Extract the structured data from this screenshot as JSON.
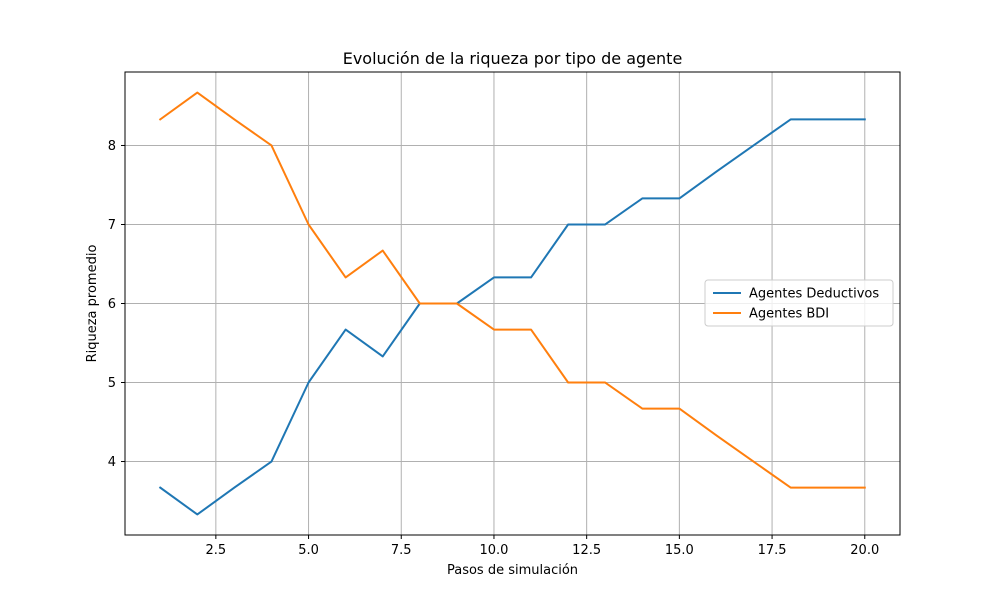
{
  "chart_data": {
    "type": "line",
    "title": "Evolución de la riqueza por tipo de agente",
    "xlabel": "Pasos de simulación",
    "ylabel": "Riqueza promedio",
    "xlim": [
      0.05,
      20.95
    ],
    "ylim": [
      3.07,
      8.93
    ],
    "xticks": [
      2.5,
      5.0,
      7.5,
      10.0,
      12.5,
      15.0,
      17.5,
      20.0
    ],
    "xtick_labels": [
      "2.5",
      "5.0",
      "7.5",
      "10.0",
      "12.5",
      "15.0",
      "17.5",
      "20.0"
    ],
    "yticks": [
      4,
      5,
      6,
      7,
      8
    ],
    "ytick_labels": [
      "4",
      "5",
      "6",
      "7",
      "8"
    ],
    "grid": true,
    "legend_position": "center-right",
    "x": [
      1,
      2,
      3,
      4,
      5,
      6,
      7,
      8,
      9,
      10,
      11,
      12,
      13,
      14,
      15,
      16,
      17,
      18,
      19,
      20
    ],
    "series": [
      {
        "name": "Agentes Deductivos",
        "color": "#1f77b4",
        "values": [
          3.67,
          3.33,
          3.67,
          4.0,
          5.0,
          5.67,
          5.33,
          6.0,
          6.0,
          6.33,
          6.33,
          7.0,
          7.0,
          7.33,
          7.33,
          7.67,
          8.0,
          8.33,
          8.33,
          8.33
        ]
      },
      {
        "name": "Agentes BDI",
        "color": "#ff7f0e",
        "values": [
          8.33,
          8.67,
          8.33,
          8.0,
          7.0,
          6.33,
          6.67,
          6.0,
          6.0,
          5.67,
          5.67,
          5.0,
          5.0,
          4.67,
          4.67,
          4.33,
          4.0,
          3.67,
          3.67,
          3.67
        ]
      }
    ]
  }
}
